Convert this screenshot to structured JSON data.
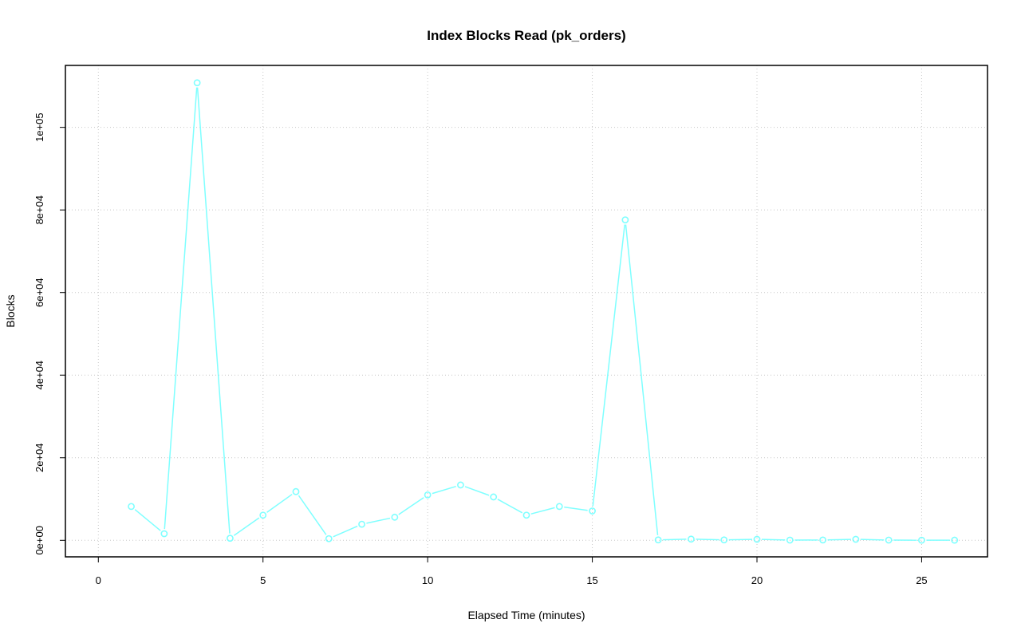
{
  "chart_data": {
    "type": "line",
    "title": "Index Blocks Read (pk_orders)",
    "xlabel": "Elapsed Time (minutes)",
    "ylabel": "Blocks",
    "xlim": [
      -1,
      27
    ],
    "ylim": [
      -4000,
      115000
    ],
    "xticks": [
      0,
      5,
      10,
      15,
      20,
      25
    ],
    "xtick_labels": [
      "0",
      "5",
      "10",
      "15",
      "20",
      "25"
    ],
    "yticks": [
      0,
      20000,
      40000,
      60000,
      80000,
      100000
    ],
    "ytick_labels": [
      "0e+00",
      "2e+04",
      "4e+04",
      "6e+04",
      "8e+04",
      "1e+05"
    ],
    "grid": true,
    "series_color": "#7FFFFF",
    "x": [
      1,
      2,
      3,
      4,
      5,
      6,
      7,
      8,
      9,
      10,
      11,
      12,
      13,
      14,
      15,
      16,
      17,
      18,
      19,
      20,
      21,
      22,
      23,
      24,
      25,
      26
    ],
    "values": [
      8200,
      1600,
      110800,
      500,
      6100,
      11800,
      400,
      3900,
      5600,
      11000,
      13400,
      10500,
      6100,
      8200,
      7100,
      77600,
      100,
      300,
      100,
      250,
      50,
      80,
      250,
      60,
      30,
      40
    ]
  }
}
